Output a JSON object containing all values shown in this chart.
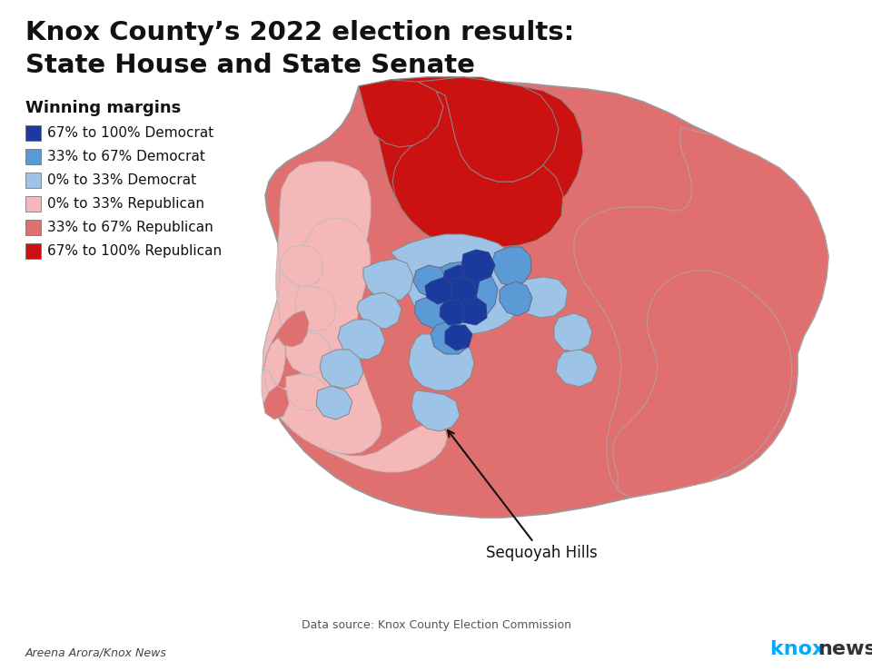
{
  "title_line1": "Knox County’s 2022 election results:",
  "title_line2": "State House and State Senate",
  "legend_title": "Winning margins",
  "legend_items": [
    {
      "label": "67% to 100% Democrat",
      "color": "#1a3a9e"
    },
    {
      "label": "33% to 67% Democrat",
      "color": "#5b9bd5"
    },
    {
      "label": "0% to 33% Democrat",
      "color": "#9dc3e6"
    },
    {
      "label": "0% to 33% Republican",
      "color": "#f4b8b8"
    },
    {
      "label": "33% to 67% Republican",
      "color": "#e07070"
    },
    {
      "label": "67% to 100% Republican",
      "color": "#cc1111"
    }
  ],
  "annotation_label": "Sequoyah Hills",
  "data_source": "Data source: Knox County Election Commission",
  "credit": "Areena Arora/Knox News",
  "knox_news_blue": "#00aaff",
  "knox_news_dark": "#333333",
  "background_color": "#ffffff",
  "border_color": "#888888"
}
